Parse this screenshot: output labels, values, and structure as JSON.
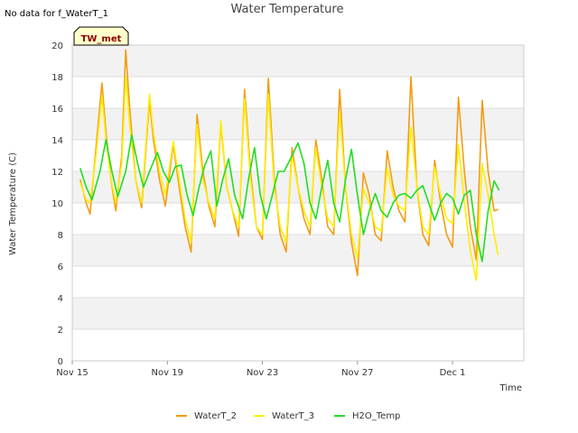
{
  "no_data_note": "No data for f_WaterT_1",
  "badge": {
    "label": "TW_met",
    "fill": "#ffffcc"
  },
  "chart_data": {
    "type": "line",
    "title": "Water Temperature",
    "xlabel": "Time",
    "ylabel": "Water Temperature (C)",
    "ylim": [
      0,
      20
    ],
    "yticks": [
      0,
      2,
      4,
      6,
      8,
      10,
      12,
      14,
      16,
      18,
      20
    ],
    "xlim": [
      "2024-11-15",
      "2024-12-04"
    ],
    "xticks": [
      {
        "date": "2024-11-15",
        "label": "Nov 15"
      },
      {
        "date": "2024-11-19",
        "label": "Nov 19"
      },
      {
        "date": "2024-11-23",
        "label": "Nov 23"
      },
      {
        "date": "2024-11-27",
        "label": "Nov 27"
      },
      {
        "date": "2024-12-01",
        "label": "Dec 1"
      }
    ],
    "grid": true,
    "banded_background": true,
    "legend_position": "bottom",
    "series": [
      {
        "name": "WaterT_2",
        "color": "#f39c12",
        "points": [
          [
            "2024-11-15T08:00",
            11.5
          ],
          [
            "2024-11-15T14:00",
            10.0
          ],
          [
            "2024-11-15T18:00",
            9.3
          ],
          [
            "2024-11-16T00:00",
            13.5
          ],
          [
            "2024-11-16T06:00",
            17.6
          ],
          [
            "2024-11-16T10:00",
            14.5
          ],
          [
            "2024-11-16T15:00",
            11.5
          ],
          [
            "2024-11-16T20:00",
            9.5
          ],
          [
            "2024-11-17T02:00",
            13.0
          ],
          [
            "2024-11-17T06:00",
            19.7
          ],
          [
            "2024-11-17T10:00",
            16.0
          ],
          [
            "2024-11-17T16:00",
            11.5
          ],
          [
            "2024-11-17T22:00",
            9.7
          ],
          [
            "2024-11-18T06:00",
            16.5
          ],
          [
            "2024-11-18T10:00",
            14.0
          ],
          [
            "2024-11-18T16:00",
            11.5
          ],
          [
            "2024-11-18T22:00",
            9.8
          ],
          [
            "2024-11-19T06:00",
            13.7
          ],
          [
            "2024-11-19T12:00",
            11.0
          ],
          [
            "2024-11-19T18:00",
            8.5
          ],
          [
            "2024-11-20T00:00",
            6.9
          ],
          [
            "2024-11-20T06:00",
            15.6
          ],
          [
            "2024-11-20T12:00",
            12.0
          ],
          [
            "2024-11-20T18:00",
            9.8
          ],
          [
            "2024-11-21T00:00",
            8.5
          ],
          [
            "2024-11-21T06:00",
            15.0
          ],
          [
            "2024-11-21T12:00",
            11.0
          ],
          [
            "2024-11-21T18:00",
            9.5
          ],
          [
            "2024-11-22T00:00",
            7.9
          ],
          [
            "2024-11-22T06:00",
            17.2
          ],
          [
            "2024-11-22T12:00",
            12.0
          ],
          [
            "2024-11-22T18:00",
            8.5
          ],
          [
            "2024-11-23T00:00",
            7.7
          ],
          [
            "2024-11-23T06:00",
            17.9
          ],
          [
            "2024-11-23T12:00",
            11.5
          ],
          [
            "2024-11-23T18:00",
            8.0
          ],
          [
            "2024-11-24T00:00",
            6.9
          ],
          [
            "2024-11-24T06:00",
            13.5
          ],
          [
            "2024-11-24T12:00",
            11.0
          ],
          [
            "2024-11-24T18:00",
            9.0
          ],
          [
            "2024-11-25T00:00",
            8.0
          ],
          [
            "2024-11-25T06:00",
            14.0
          ],
          [
            "2024-11-25T12:00",
            11.5
          ],
          [
            "2024-11-25T18:00",
            8.5
          ],
          [
            "2024-11-26T00:00",
            8.0
          ],
          [
            "2024-11-26T06:00",
            17.2
          ],
          [
            "2024-11-26T12:00",
            11.0
          ],
          [
            "2024-11-26T18:00",
            7.5
          ],
          [
            "2024-11-27T00:00",
            5.4
          ],
          [
            "2024-11-27T06:00",
            11.9
          ],
          [
            "2024-11-27T12:00",
            10.5
          ],
          [
            "2024-11-27T18:00",
            8.0
          ],
          [
            "2024-11-28T00:00",
            7.6
          ],
          [
            "2024-11-28T06:00",
            13.3
          ],
          [
            "2024-11-28T12:00",
            11.0
          ],
          [
            "2024-11-28T18:00",
            9.5
          ],
          [
            "2024-11-29T00:00",
            8.8
          ],
          [
            "2024-11-29T06:00",
            18.0
          ],
          [
            "2024-11-29T12:00",
            11.0
          ],
          [
            "2024-11-29T18:00",
            8.0
          ],
          [
            "2024-11-30T00:00",
            7.3
          ],
          [
            "2024-11-30T06:00",
            12.7
          ],
          [
            "2024-11-30T12:00",
            10.0
          ],
          [
            "2024-11-30T18:00",
            8.0
          ],
          [
            "2024-12-01T00:00",
            7.2
          ],
          [
            "2024-12-01T06:00",
            16.7
          ],
          [
            "2024-12-01T12:00",
            12.0
          ],
          [
            "2024-12-01T18:00",
            8.5
          ],
          [
            "2024-12-02T00:00",
            6.4
          ],
          [
            "2024-12-02T06:00",
            16.5
          ],
          [
            "2024-12-02T12:00",
            12.0
          ],
          [
            "2024-12-02T18:00",
            9.5
          ],
          [
            "2024-12-02T22:00",
            9.6
          ]
        ]
      },
      {
        "name": "WaterT_3",
        "color": "#ffee00",
        "points": [
          [
            "2024-11-15T08:00",
            11.3
          ],
          [
            "2024-11-15T14:00",
            10.2
          ],
          [
            "2024-11-15T18:00",
            10.0
          ],
          [
            "2024-11-16T00:00",
            13.0
          ],
          [
            "2024-11-16T06:00",
            16.8
          ],
          [
            "2024-11-16T10:00",
            14.0
          ],
          [
            "2024-11-16T15:00",
            11.5
          ],
          [
            "2024-11-16T20:00",
            10.0
          ],
          [
            "2024-11-17T02:00",
            12.5
          ],
          [
            "2024-11-17T06:00",
            18.0
          ],
          [
            "2024-11-17T10:00",
            15.0
          ],
          [
            "2024-11-17T16:00",
            11.5
          ],
          [
            "2024-11-17T22:00",
            10.0
          ],
          [
            "2024-11-18T06:00",
            16.9
          ],
          [
            "2024-11-18T10:00",
            14.5
          ],
          [
            "2024-11-18T16:00",
            12.0
          ],
          [
            "2024-11-18T22:00",
            10.5
          ],
          [
            "2024-11-19T06:00",
            13.9
          ],
          [
            "2024-11-19T12:00",
            11.5
          ],
          [
            "2024-11-19T18:00",
            9.0
          ],
          [
            "2024-11-20T00:00",
            7.5
          ],
          [
            "2024-11-20T06:00",
            15.0
          ],
          [
            "2024-11-20T12:00",
            11.5
          ],
          [
            "2024-11-20T18:00",
            10.0
          ],
          [
            "2024-11-21T00:00",
            9.0
          ],
          [
            "2024-11-21T06:00",
            15.2
          ],
          [
            "2024-11-21T12:00",
            11.0
          ],
          [
            "2024-11-21T18:00",
            9.5
          ],
          [
            "2024-11-22T00:00",
            8.5
          ],
          [
            "2024-11-22T06:00",
            16.6
          ],
          [
            "2024-11-22T12:00",
            11.5
          ],
          [
            "2024-11-22T18:00",
            8.5
          ],
          [
            "2024-11-23T00:00",
            8.0
          ],
          [
            "2024-11-23T06:00",
            16.9
          ],
          [
            "2024-11-23T12:00",
            11.0
          ],
          [
            "2024-11-23T18:00",
            8.5
          ],
          [
            "2024-11-24T00:00",
            7.5
          ],
          [
            "2024-11-24T06:00",
            13.0
          ],
          [
            "2024-11-24T12:00",
            11.0
          ],
          [
            "2024-11-24T18:00",
            9.5
          ],
          [
            "2024-11-25T00:00",
            8.5
          ],
          [
            "2024-11-25T06:00",
            13.5
          ],
          [
            "2024-11-25T12:00",
            11.0
          ],
          [
            "2024-11-25T18:00",
            9.0
          ],
          [
            "2024-11-26T00:00",
            8.5
          ],
          [
            "2024-11-26T06:00",
            15.8
          ],
          [
            "2024-11-26T12:00",
            11.0
          ],
          [
            "2024-11-26T18:00",
            8.0
          ],
          [
            "2024-11-27T00:00",
            6.5
          ],
          [
            "2024-11-27T06:00",
            10.9
          ],
          [
            "2024-11-27T12:00",
            10.0
          ],
          [
            "2024-11-27T18:00",
            8.5
          ],
          [
            "2024-11-28T00:00",
            8.2
          ],
          [
            "2024-11-28T06:00",
            12.2
          ],
          [
            "2024-11-28T12:00",
            10.5
          ],
          [
            "2024-11-28T18:00",
            9.8
          ],
          [
            "2024-11-29T00:00",
            9.5
          ],
          [
            "2024-11-29T06:00",
            14.8
          ],
          [
            "2024-11-29T12:00",
            11.0
          ],
          [
            "2024-11-29T18:00",
            8.5
          ],
          [
            "2024-11-30T00:00",
            8.0
          ],
          [
            "2024-11-30T06:00",
            12.3
          ],
          [
            "2024-11-30T12:00",
            10.5
          ],
          [
            "2024-11-30T18:00",
            9.0
          ],
          [
            "2024-12-01T00:00",
            8.7
          ],
          [
            "2024-12-01T06:00",
            13.7
          ],
          [
            "2024-12-01T12:00",
            10.0
          ],
          [
            "2024-12-01T18:00",
            7.0
          ],
          [
            "2024-12-02T00:00",
            5.1
          ],
          [
            "2024-12-02T06:00",
            12.5
          ],
          [
            "2024-12-02T12:00",
            10.5
          ],
          [
            "2024-12-02T18:00",
            8.0
          ],
          [
            "2024-12-02T22:00",
            6.7
          ]
        ]
      },
      {
        "name": "H2O_Temp",
        "color": "#22dd22",
        "points": [
          [
            "2024-11-15T08:00",
            12.2
          ],
          [
            "2024-11-15T14:00",
            11.0
          ],
          [
            "2024-11-15T20:00",
            10.2
          ],
          [
            "2024-11-16T04:00",
            12.0
          ],
          [
            "2024-11-16T10:00",
            14.0
          ],
          [
            "2024-11-16T16:00",
            12.0
          ],
          [
            "2024-11-16T22:00",
            10.4
          ],
          [
            "2024-11-17T06:00",
            12.0
          ],
          [
            "2024-11-17T12:00",
            14.3
          ],
          [
            "2024-11-17T18:00",
            12.5
          ],
          [
            "2024-11-18T00:00",
            11.0
          ],
          [
            "2024-11-18T08:00",
            12.3
          ],
          [
            "2024-11-18T14:00",
            13.2
          ],
          [
            "2024-11-18T20:00",
            12.0
          ],
          [
            "2024-11-19T02:00",
            11.3
          ],
          [
            "2024-11-19T08:00",
            12.3
          ],
          [
            "2024-11-19T14:00",
            12.4
          ],
          [
            "2024-11-19T20:00",
            10.5
          ],
          [
            "2024-11-20T02:00",
            9.2
          ],
          [
            "2024-11-20T08:00",
            11.0
          ],
          [
            "2024-11-20T14:00",
            12.4
          ],
          [
            "2024-11-20T20:00",
            13.3
          ],
          [
            "2024-11-21T02:00",
            9.8
          ],
          [
            "2024-11-21T08:00",
            11.5
          ],
          [
            "2024-11-21T14:00",
            12.8
          ],
          [
            "2024-11-21T20:00",
            10.5
          ],
          [
            "2024-11-22T04:00",
            9.0
          ],
          [
            "2024-11-22T10:00",
            11.5
          ],
          [
            "2024-11-22T16:00",
            13.5
          ],
          [
            "2024-11-22T22:00",
            10.5
          ],
          [
            "2024-11-23T04:00",
            9.0
          ],
          [
            "2024-11-23T10:00",
            10.5
          ],
          [
            "2024-11-23T16:00",
            12.0
          ],
          [
            "2024-11-23T22:00",
            12.0
          ],
          [
            "2024-11-24T06:00",
            13.0
          ],
          [
            "2024-11-24T12:00",
            13.8
          ],
          [
            "2024-11-24T18:00",
            12.5
          ],
          [
            "2024-11-25T00:00",
            10.0
          ],
          [
            "2024-11-25T06:00",
            9.0
          ],
          [
            "2024-11-25T12:00",
            11.0
          ],
          [
            "2024-11-25T18:00",
            12.7
          ],
          [
            "2024-11-26T00:00",
            10.0
          ],
          [
            "2024-11-26T06:00",
            8.8
          ],
          [
            "2024-11-26T12:00",
            11.5
          ],
          [
            "2024-11-26T18:00",
            13.4
          ],
          [
            "2024-11-27T00:00",
            10.5
          ],
          [
            "2024-11-27T06:00",
            8.0
          ],
          [
            "2024-11-27T12:00",
            9.5
          ],
          [
            "2024-11-27T18:00",
            10.6
          ],
          [
            "2024-11-28T00:00",
            9.5
          ],
          [
            "2024-11-28T06:00",
            9.1
          ],
          [
            "2024-11-28T12:00",
            10.0
          ],
          [
            "2024-11-28T18:00",
            10.5
          ],
          [
            "2024-11-29T00:00",
            10.6
          ],
          [
            "2024-11-29T06:00",
            10.3
          ],
          [
            "2024-11-29T12:00",
            10.8
          ],
          [
            "2024-11-29T18:00",
            11.1
          ],
          [
            "2024-11-30T00:00",
            10.0
          ],
          [
            "2024-11-30T06:00",
            8.9
          ],
          [
            "2024-11-30T12:00",
            10.0
          ],
          [
            "2024-11-30T18:00",
            10.6
          ],
          [
            "2024-12-01T00:00",
            10.3
          ],
          [
            "2024-12-01T06:00",
            9.3
          ],
          [
            "2024-12-01T12:00",
            10.5
          ],
          [
            "2024-12-01T18:00",
            10.8
          ],
          [
            "2024-12-02T00:00",
            8.0
          ],
          [
            "2024-12-02T06:00",
            6.3
          ],
          [
            "2024-12-02T12:00",
            9.5
          ],
          [
            "2024-12-02T18:00",
            11.4
          ],
          [
            "2024-12-02T23:00",
            10.8
          ]
        ]
      }
    ]
  }
}
